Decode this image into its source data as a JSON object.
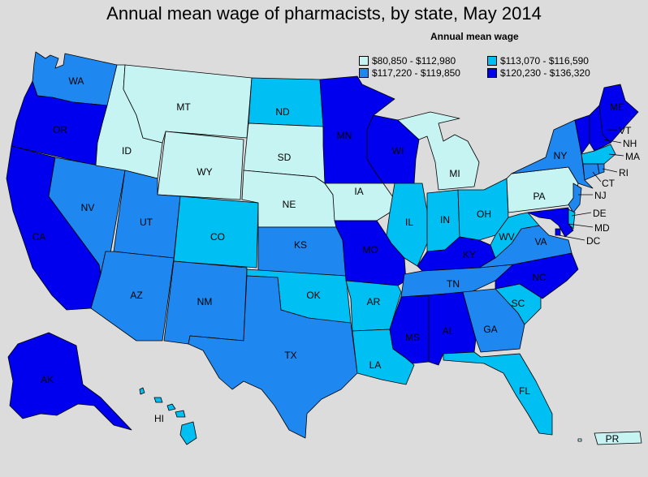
{
  "title": "Annual mean wage of pharmacists, by state, May 2014",
  "legend": {
    "title": "Annual mean wage",
    "bins": [
      {
        "label": "$80,850 - $112,980",
        "color": "#c6f4f2"
      },
      {
        "label": "$113,070 - $116,590",
        "color": "#00bff3"
      },
      {
        "label": "$117,220 - $119,850",
        "color": "#1e88f0"
      },
      {
        "label": "$120,230 - $136,320",
        "color": "#0000ee"
      }
    ]
  },
  "colors": {
    "c0": "#c6f4f2",
    "c1": "#00bff3",
    "c2": "#1e88f0",
    "c3": "#0000ee",
    "background": "#dcdcdc"
  },
  "states": [
    {
      "abbr": "WA",
      "bin": 2
    },
    {
      "abbr": "OR",
      "bin": 3
    },
    {
      "abbr": "CA",
      "bin": 3
    },
    {
      "abbr": "NV",
      "bin": 2
    },
    {
      "abbr": "ID",
      "bin": 0
    },
    {
      "abbr": "MT",
      "bin": 0
    },
    {
      "abbr": "WY",
      "bin": 0
    },
    {
      "abbr": "UT",
      "bin": 2
    },
    {
      "abbr": "AZ",
      "bin": 2
    },
    {
      "abbr": "CO",
      "bin": 1
    },
    {
      "abbr": "NM",
      "bin": 2
    },
    {
      "abbr": "ND",
      "bin": 1
    },
    {
      "abbr": "SD",
      "bin": 0
    },
    {
      "abbr": "NE",
      "bin": 0
    },
    {
      "abbr": "KS",
      "bin": 2
    },
    {
      "abbr": "OK",
      "bin": 1
    },
    {
      "abbr": "TX",
      "bin": 2
    },
    {
      "abbr": "MN",
      "bin": 3
    },
    {
      "abbr": "IA",
      "bin": 0
    },
    {
      "abbr": "MO",
      "bin": 3
    },
    {
      "abbr": "AR",
      "bin": 1
    },
    {
      "abbr": "LA",
      "bin": 1
    },
    {
      "abbr": "WI",
      "bin": 3
    },
    {
      "abbr": "IL",
      "bin": 1
    },
    {
      "abbr": "MI",
      "bin": 0
    },
    {
      "abbr": "IN",
      "bin": 1
    },
    {
      "abbr": "OH",
      "bin": 1
    },
    {
      "abbr": "KY",
      "bin": 3
    },
    {
      "abbr": "TN",
      "bin": 2
    },
    {
      "abbr": "MS",
      "bin": 3
    },
    {
      "abbr": "AL",
      "bin": 3
    },
    {
      "abbr": "GA",
      "bin": 2
    },
    {
      "abbr": "FL",
      "bin": 1
    },
    {
      "abbr": "SC",
      "bin": 1
    },
    {
      "abbr": "NC",
      "bin": 3
    },
    {
      "abbr": "VA",
      "bin": 2
    },
    {
      "abbr": "WV",
      "bin": 1
    },
    {
      "abbr": "PA",
      "bin": 0
    },
    {
      "abbr": "NY",
      "bin": 2
    },
    {
      "abbr": "ME",
      "bin": 3
    },
    {
      "abbr": "VT",
      "bin": 3
    },
    {
      "abbr": "NH",
      "bin": 3
    },
    {
      "abbr": "MA",
      "bin": 1
    },
    {
      "abbr": "RI",
      "bin": 2
    },
    {
      "abbr": "CT",
      "bin": 2
    },
    {
      "abbr": "NJ",
      "bin": 2
    },
    {
      "abbr": "DE",
      "bin": 1
    },
    {
      "abbr": "MD",
      "bin": 3
    },
    {
      "abbr": "DC",
      "bin": 3
    },
    {
      "abbr": "AK",
      "bin": 3
    },
    {
      "abbr": "HI",
      "bin": 1
    },
    {
      "abbr": "PR",
      "bin": 0
    }
  ]
}
